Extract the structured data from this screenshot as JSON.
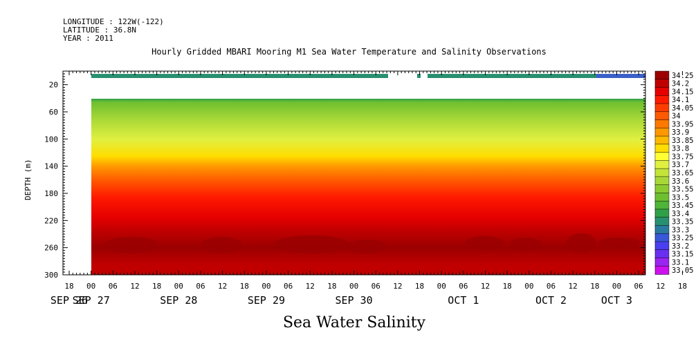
{
  "header": {
    "longitude": "LONGITUDE : 122W(-122)",
    "latitude": "LATITUDE : 36.8N",
    "year": "YEAR : 2011"
  },
  "chart_data": {
    "type": "heatmap",
    "title": "Hourly Gridded MBARI Mooring M1 Sea Water Temperature and Salinity Observations",
    "xlabel": "Sea Water Salinity",
    "ylabel": "DEPTH (m)",
    "ylim": [
      300,
      0
    ],
    "y_ticks": [
      20,
      60,
      100,
      140,
      180,
      220,
      260,
      300
    ],
    "x_hour_ticks": [
      "18",
      "00",
      "06",
      "12",
      "18",
      "00",
      "06",
      "12",
      "18",
      "00",
      "06",
      "12",
      "18",
      "00",
      "06",
      "12",
      "18",
      "00",
      "06",
      "12",
      "18",
      "00",
      "06",
      "12",
      "18",
      "00",
      "06",
      "12",
      "18",
      "00",
      "06"
    ],
    "x_day_labels": [
      {
        "label": "SEP 26",
        "hour_index": 0
      },
      {
        "label": "SEP 27",
        "hour_index": 1
      },
      {
        "label": "SEP 28",
        "hour_index": 5
      },
      {
        "label": "SEP 29",
        "hour_index": 9
      },
      {
        "label": "SEP 30",
        "hour_index": 13
      },
      {
        "label": "OCT  1",
        "hour_index": 18
      },
      {
        "label": "OCT  2",
        "hour_index": 22
      },
      {
        "label": "OCT  3",
        "hour_index": 25
      }
    ],
    "colorbar_levels": [
      "34.25",
      "34.2",
      "34.15",
      "34.1",
      "34.05",
      "34",
      "33.95",
      "33.9",
      "33.85",
      "33.8",
      "33.75",
      "33.7",
      "33.65",
      "33.6",
      "33.55",
      "33.5",
      "33.45",
      "33.4",
      "33.35",
      "33.3",
      "33.25",
      "33.2",
      "33.15",
      "33.1",
      "33.05"
    ],
    "colorbar_colors": [
      "#9b0000",
      "#c00000",
      "#e60000",
      "#ff1a00",
      "#ff3d00",
      "#ff5a00",
      "#ff7800",
      "#ff9800",
      "#ffb800",
      "#ffdd00",
      "#ffff33",
      "#e0f040",
      "#c4e43a",
      "#a8d838",
      "#8acb30",
      "#6ebf30",
      "#50b438",
      "#30a048",
      "#289070",
      "#2a7aa0",
      "#3858d8",
      "#4a3ef0",
      "#6a2ef0",
      "#9a24f0",
      "#cc10ee"
    ],
    "depth_profile": [
      {
        "depth": 15,
        "value": 33.38
      },
      {
        "depth": 45,
        "value": 33.5
      },
      {
        "depth": 70,
        "value": 33.6
      },
      {
        "depth": 100,
        "value": 33.72
      },
      {
        "depth": 125,
        "value": 33.82
      },
      {
        "depth": 140,
        "value": 33.92
      },
      {
        "depth": 160,
        "value": 34.02
      },
      {
        "depth": 185,
        "value": 34.1
      },
      {
        "depth": 215,
        "value": 34.15
      },
      {
        "depth": 235,
        "value": 34.2
      },
      {
        "depth": 260,
        "value": 34.25
      },
      {
        "depth": 285,
        "value": 34.22
      },
      {
        "depth": 300,
        "value": 34.22
      }
    ]
  }
}
